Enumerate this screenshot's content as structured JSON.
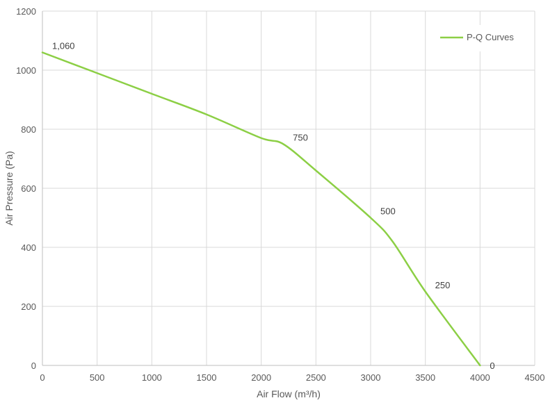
{
  "chart_data": {
    "type": "line",
    "title": "",
    "xlabel": "Air Flow  (m³/h)",
    "ylabel": "Air Pressure  (Pa)",
    "xlim": [
      0,
      4500
    ],
    "ylim": [
      0,
      1200
    ],
    "x_ticks": [
      0,
      500,
      1000,
      1500,
      2000,
      2500,
      3000,
      3500,
      4000,
      4500
    ],
    "y_ticks": [
      0,
      200,
      400,
      600,
      800,
      1000,
      1200
    ],
    "grid": true,
    "legend_position": "top-right",
    "series": [
      {
        "name": "P-Q Curves",
        "color": "#8ccf45",
        "x": [
          0,
          500,
          1000,
          1500,
          2000,
          2200,
          2500,
          3000,
          3200,
          3500,
          4000
        ],
        "y": [
          1060,
          990,
          920,
          850,
          770,
          750,
          660,
          500,
          420,
          250,
          0
        ],
        "labeled_points": [
          {
            "x": 0,
            "y": 1060,
            "label": "1,060"
          },
          {
            "x": 2200,
            "y": 750,
            "label": "750"
          },
          {
            "x": 3000,
            "y": 500,
            "label": "500"
          },
          {
            "x": 3500,
            "y": 250,
            "label": "250"
          },
          {
            "x": 4000,
            "y": 0,
            "label": "0"
          }
        ]
      }
    ]
  },
  "legend": {
    "label": "P-Q Curves"
  }
}
